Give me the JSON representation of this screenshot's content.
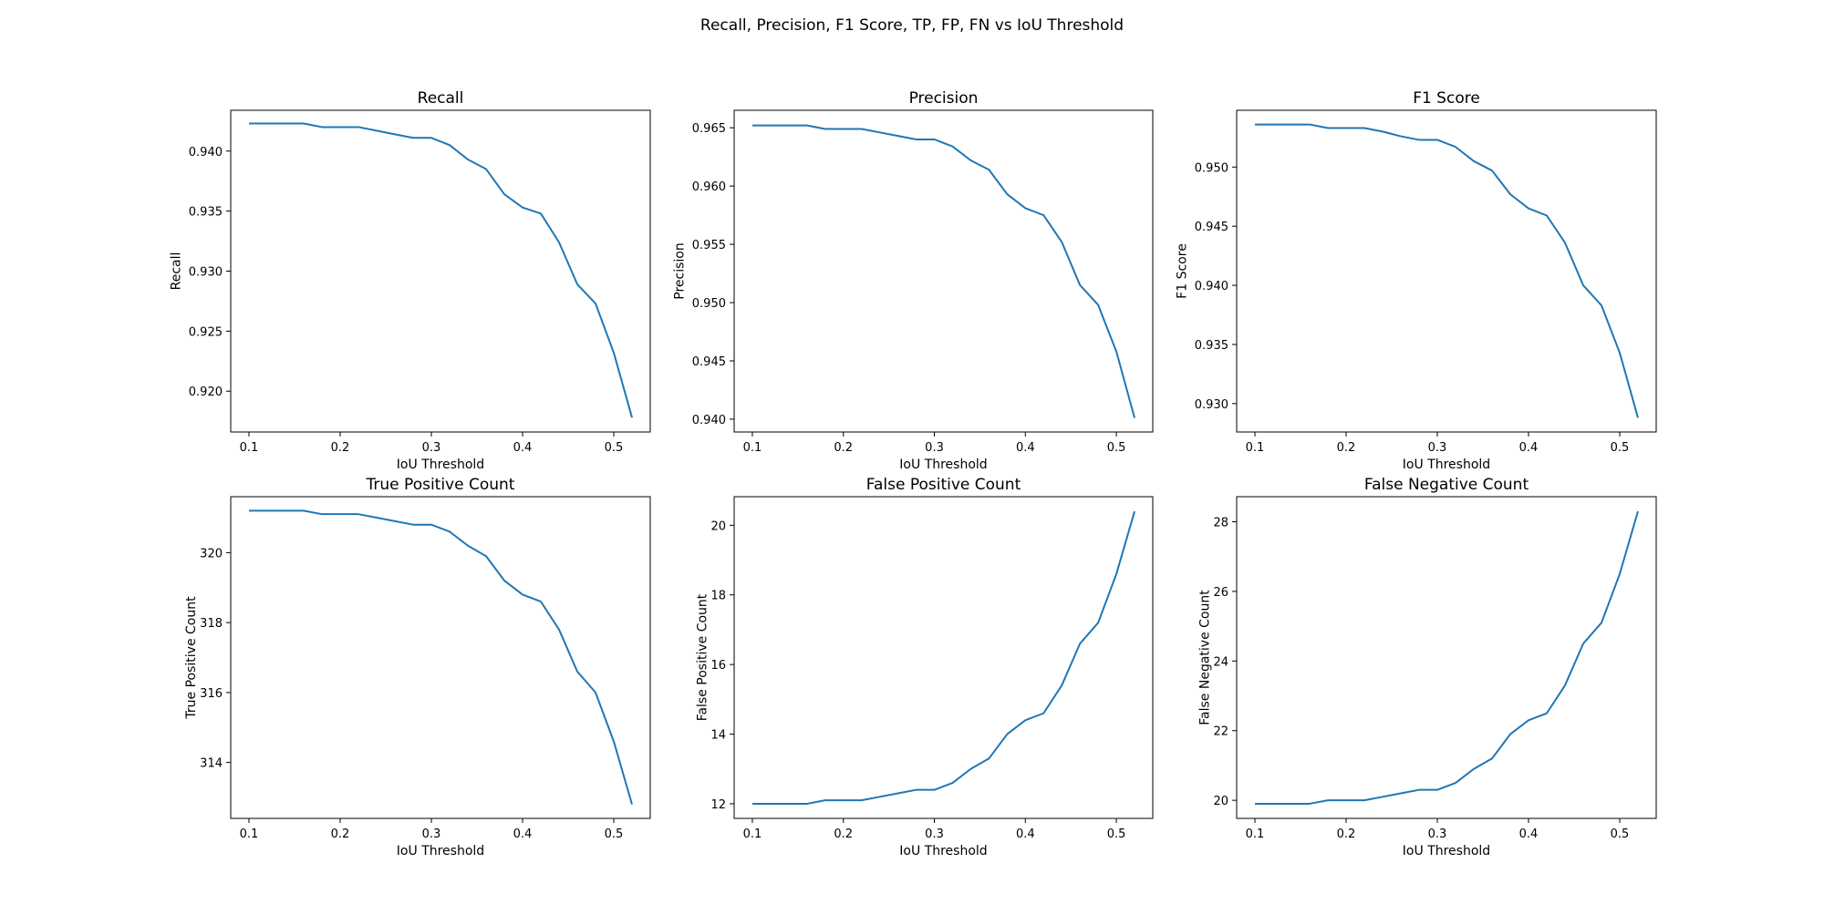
{
  "suptitle": "Recall, Precision, F1 Score, TP, FP, FN vs IoU Threshold",
  "chart_data": [
    {
      "type": "line",
      "title": "Recall",
      "xlabel": "IoU Threshold",
      "ylabel": "Recall",
      "xlim": [
        0.08,
        0.54
      ],
      "ylim": [
        0.9166,
        0.9434
      ],
      "xticks": [
        0.1,
        0.2,
        0.3,
        0.4,
        0.5
      ],
      "xtick_labels": [
        "0.1",
        "0.2",
        "0.3",
        "0.4",
        "0.5"
      ],
      "yticks": [
        0.92,
        0.925,
        0.93,
        0.935,
        0.94
      ],
      "ytick_labels": [
        "0.920",
        "0.925",
        "0.930",
        "0.935",
        "0.940"
      ],
      "grid": false,
      "color": "#1f77b4",
      "x": [
        0.1,
        0.12,
        0.14,
        0.16,
        0.18,
        0.2,
        0.22,
        0.24,
        0.26,
        0.28,
        0.3,
        0.32,
        0.34,
        0.36,
        0.38,
        0.4,
        0.42,
        0.44,
        0.46,
        0.48,
        0.5,
        0.52
      ],
      "y": [
        0.9423,
        0.9423,
        0.9423,
        0.9423,
        0.942,
        0.942,
        0.942,
        0.9417,
        0.9414,
        0.9411,
        0.9411,
        0.9405,
        0.9393,
        0.9385,
        0.9364,
        0.9353,
        0.9348,
        0.9324,
        0.9289,
        0.9273,
        0.9232,
        0.9178
      ]
    },
    {
      "type": "line",
      "title": "Precision",
      "xlabel": "IoU Threshold",
      "ylabel": "Precision",
      "xlim": [
        0.08,
        0.54
      ],
      "ylim": [
        0.9389,
        0.9665
      ],
      "xticks": [
        0.1,
        0.2,
        0.3,
        0.4,
        0.5
      ],
      "xtick_labels": [
        "0.1",
        "0.2",
        "0.3",
        "0.4",
        "0.5"
      ],
      "yticks": [
        0.94,
        0.945,
        0.95,
        0.955,
        0.96,
        0.965
      ],
      "ytick_labels": [
        "0.940",
        "0.945",
        "0.950",
        "0.955",
        "0.960",
        "0.965"
      ],
      "grid": false,
      "color": "#1f77b4",
      "x": [
        0.1,
        0.12,
        0.14,
        0.16,
        0.18,
        0.2,
        0.22,
        0.24,
        0.26,
        0.28,
        0.3,
        0.32,
        0.34,
        0.36,
        0.38,
        0.4,
        0.42,
        0.44,
        0.46,
        0.48,
        0.5,
        0.52
      ],
      "y": [
        0.9652,
        0.9652,
        0.9652,
        0.9652,
        0.9649,
        0.9649,
        0.9649,
        0.9646,
        0.9643,
        0.964,
        0.964,
        0.9634,
        0.9622,
        0.9614,
        0.9593,
        0.9581,
        0.9575,
        0.9552,
        0.9515,
        0.9498,
        0.9458,
        0.9401
      ]
    },
    {
      "type": "line",
      "title": "F1 Score",
      "xlabel": "IoU Threshold",
      "ylabel": "F1 Score",
      "xlim": [
        0.08,
        0.54
      ],
      "ylim": [
        0.9276,
        0.9548
      ],
      "xticks": [
        0.1,
        0.2,
        0.3,
        0.4,
        0.5
      ],
      "xtick_labels": [
        "0.1",
        "0.2",
        "0.3",
        "0.4",
        "0.5"
      ],
      "yticks": [
        0.93,
        0.935,
        0.94,
        0.945,
        0.95
      ],
      "ytick_labels": [
        "0.930",
        "0.935",
        "0.940",
        "0.945",
        "0.950"
      ],
      "grid": false,
      "color": "#1f77b4",
      "x": [
        0.1,
        0.12,
        0.14,
        0.16,
        0.18,
        0.2,
        0.22,
        0.24,
        0.26,
        0.28,
        0.3,
        0.32,
        0.34,
        0.36,
        0.38,
        0.4,
        0.42,
        0.44,
        0.46,
        0.48,
        0.5,
        0.52
      ],
      "y": [
        0.9536,
        0.9536,
        0.9536,
        0.9536,
        0.9533,
        0.9533,
        0.9533,
        0.953,
        0.9526,
        0.9523,
        0.9523,
        0.9517,
        0.9505,
        0.9497,
        0.9477,
        0.9465,
        0.9459,
        0.9436,
        0.94,
        0.9383,
        0.9343,
        0.9288
      ]
    },
    {
      "type": "line",
      "title": "True Positive Count",
      "xlabel": "IoU Threshold",
      "ylabel": "True Positive Count",
      "xlim": [
        0.08,
        0.54
      ],
      "ylim": [
        312.4,
        321.6
      ],
      "xticks": [
        0.1,
        0.2,
        0.3,
        0.4,
        0.5
      ],
      "xtick_labels": [
        "0.1",
        "0.2",
        "0.3",
        "0.4",
        "0.5"
      ],
      "yticks": [
        314,
        316,
        318,
        320
      ],
      "ytick_labels": [
        "314",
        "316",
        "318",
        "320"
      ],
      "grid": false,
      "color": "#1f77b4",
      "x": [
        0.1,
        0.12,
        0.14,
        0.16,
        0.18,
        0.2,
        0.22,
        0.24,
        0.26,
        0.28,
        0.3,
        0.32,
        0.34,
        0.36,
        0.38,
        0.4,
        0.42,
        0.44,
        0.46,
        0.48,
        0.5,
        0.52
      ],
      "y": [
        321.2,
        321.2,
        321.2,
        321.2,
        321.1,
        321.1,
        321.1,
        321.0,
        320.9,
        320.8,
        320.8,
        320.6,
        320.2,
        319.9,
        319.2,
        318.8,
        318.6,
        317.8,
        316.6,
        316.0,
        314.6,
        312.8
      ]
    },
    {
      "type": "line",
      "title": "False Positive Count",
      "xlabel": "IoU Threshold",
      "ylabel": "False Positive Count",
      "xlim": [
        0.08,
        0.54
      ],
      "ylim": [
        11.58,
        20.82
      ],
      "xticks": [
        0.1,
        0.2,
        0.3,
        0.4,
        0.5
      ],
      "xtick_labels": [
        "0.1",
        "0.2",
        "0.3",
        "0.4",
        "0.5"
      ],
      "yticks": [
        12,
        14,
        16,
        18,
        20
      ],
      "ytick_labels": [
        "12",
        "14",
        "16",
        "18",
        "20"
      ],
      "grid": false,
      "color": "#1f77b4",
      "x": [
        0.1,
        0.12,
        0.14,
        0.16,
        0.18,
        0.2,
        0.22,
        0.24,
        0.26,
        0.28,
        0.3,
        0.32,
        0.34,
        0.36,
        0.38,
        0.4,
        0.42,
        0.44,
        0.46,
        0.48,
        0.5,
        0.52
      ],
      "y": [
        12.0,
        12.0,
        12.0,
        12.0,
        12.1,
        12.1,
        12.1,
        12.2,
        12.3,
        12.4,
        12.4,
        12.6,
        13.0,
        13.3,
        14.0,
        14.4,
        14.6,
        15.4,
        16.6,
        17.2,
        18.6,
        20.4
      ]
    },
    {
      "type": "line",
      "title": "False Negative Count",
      "xlabel": "IoU Threshold",
      "ylabel": "False Negative Count",
      "xlim": [
        0.08,
        0.54
      ],
      "ylim": [
        19.48,
        28.72
      ],
      "xticks": [
        0.1,
        0.2,
        0.3,
        0.4,
        0.5
      ],
      "xtick_labels": [
        "0.1",
        "0.2",
        "0.3",
        "0.4",
        "0.5"
      ],
      "yticks": [
        20,
        22,
        24,
        26,
        28
      ],
      "ytick_labels": [
        "20",
        "22",
        "24",
        "26",
        "28"
      ],
      "grid": false,
      "color": "#1f77b4",
      "x": [
        0.1,
        0.12,
        0.14,
        0.16,
        0.18,
        0.2,
        0.22,
        0.24,
        0.26,
        0.28,
        0.3,
        0.32,
        0.34,
        0.36,
        0.38,
        0.4,
        0.42,
        0.44,
        0.46,
        0.48,
        0.5,
        0.52
      ],
      "y": [
        19.9,
        19.9,
        19.9,
        19.9,
        20.0,
        20.0,
        20.0,
        20.1,
        20.2,
        20.3,
        20.3,
        20.5,
        20.9,
        21.2,
        21.9,
        22.3,
        22.5,
        23.3,
        24.5,
        25.1,
        26.5,
        28.3
      ]
    }
  ]
}
